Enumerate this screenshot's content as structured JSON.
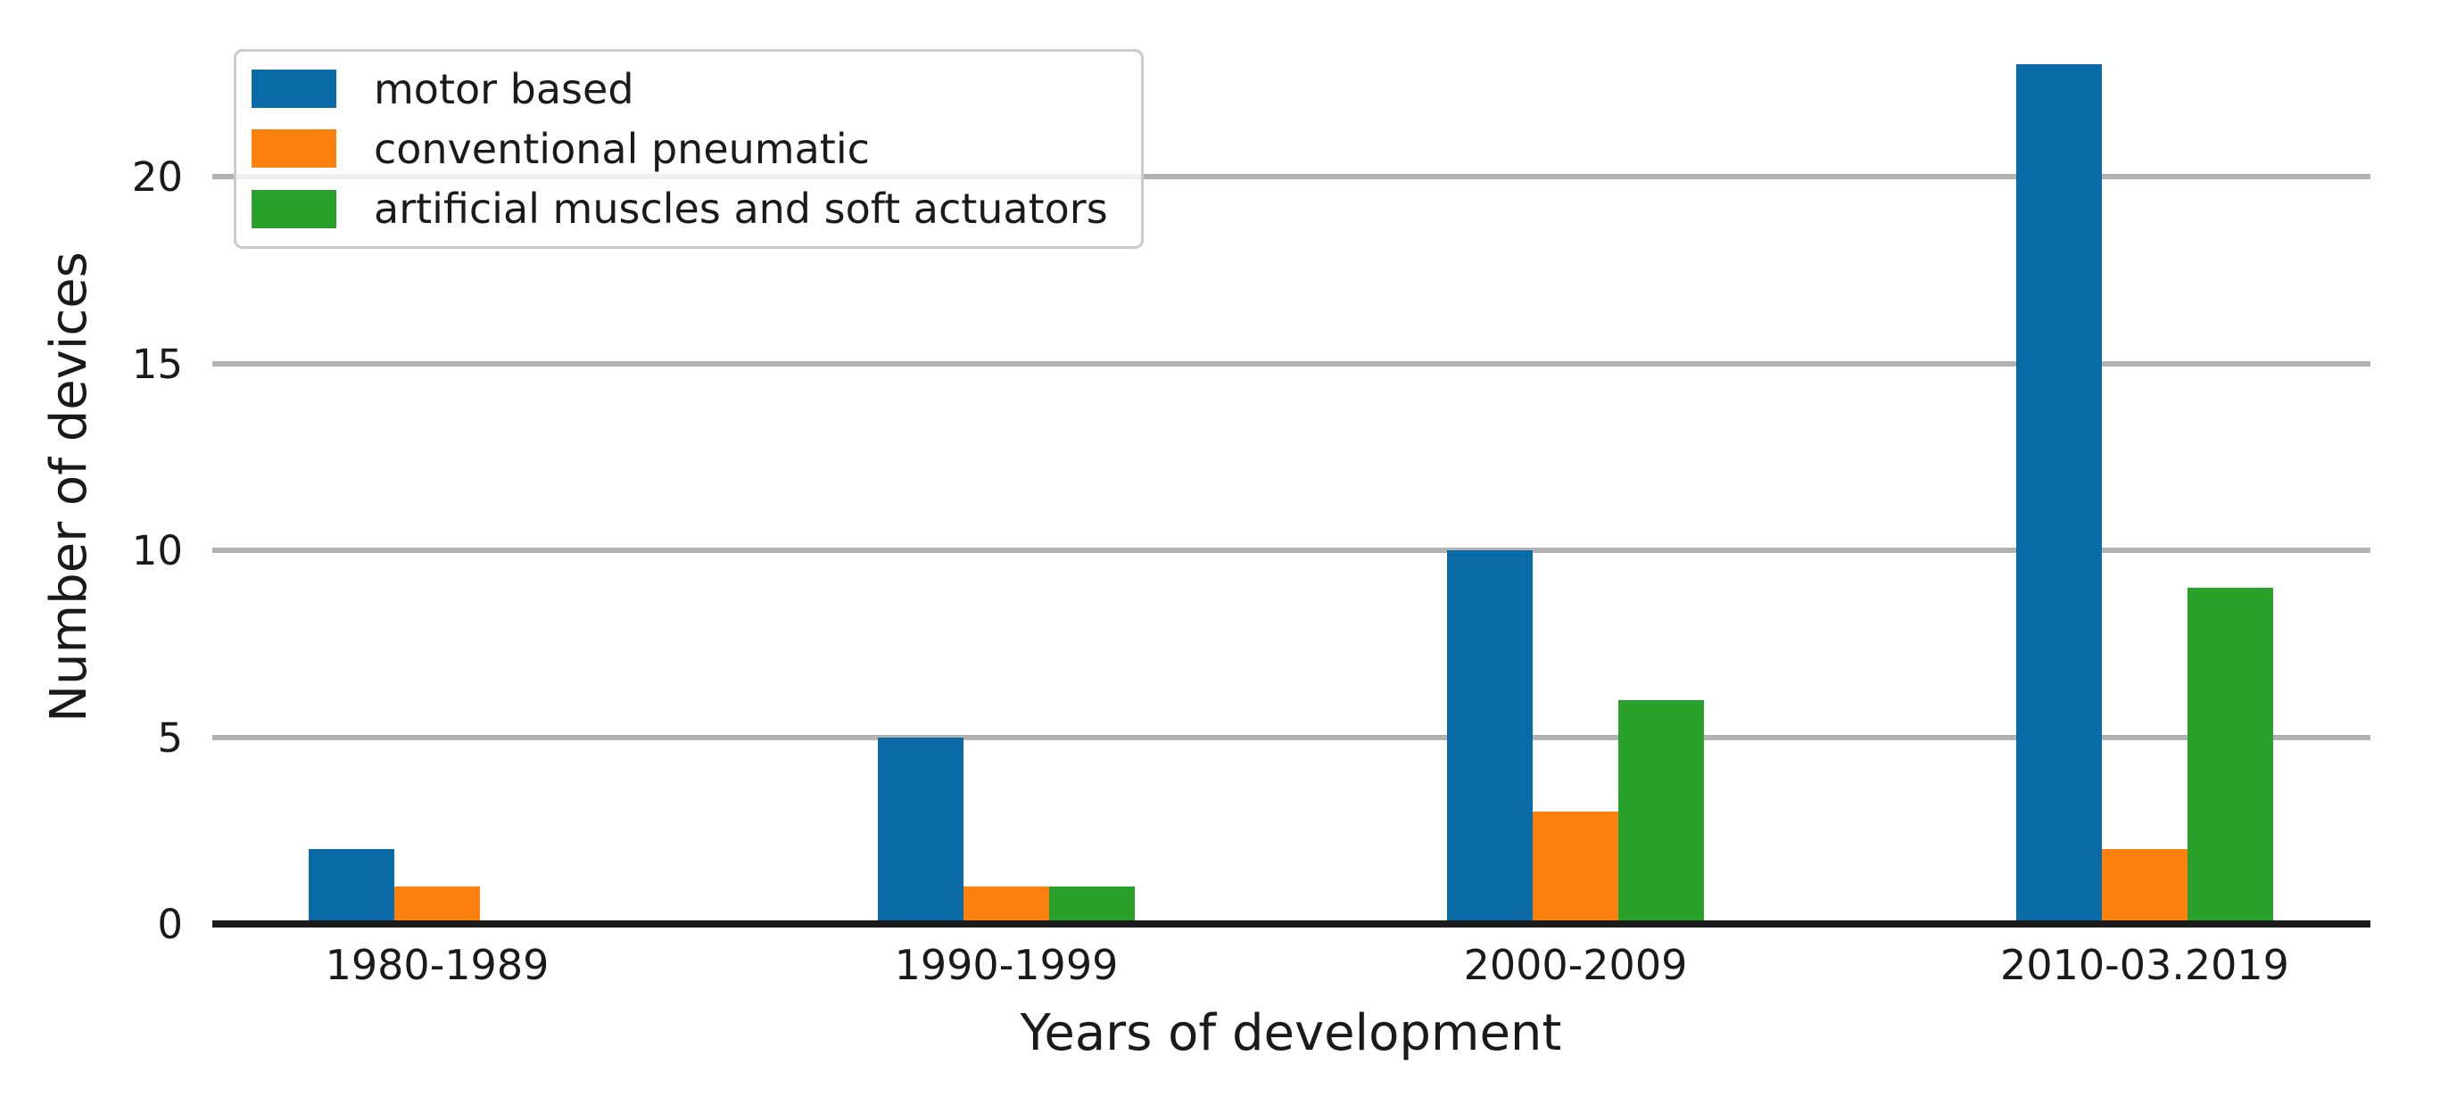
{
  "chart_data": {
    "type": "bar",
    "title": "",
    "xlabel": "Years of development",
    "ylabel": "Number of devices",
    "categories": [
      "1980-1989",
      "1990-1999",
      "2000-2009",
      "2010-03.2019"
    ],
    "series": [
      {
        "name": "motor based",
        "color": "#0a6ba7",
        "values": [
          2,
          5,
          10,
          23
        ]
      },
      {
        "name": "conventional pneumatic",
        "color": "#fd810e",
        "values": [
          1,
          1,
          3,
          2
        ]
      },
      {
        "name": "artificial muscles and soft actuators",
        "color": "#2aa12b",
        "values": [
          0,
          1,
          6,
          9
        ]
      }
    ],
    "yticks": [
      0,
      5,
      10,
      15,
      20
    ],
    "ylim": [
      0,
      23.5
    ],
    "grid": "horizontal",
    "grid_color": "#b2b2b2",
    "axis_color": "#1b1b1b",
    "legend_position": "upper-left"
  }
}
